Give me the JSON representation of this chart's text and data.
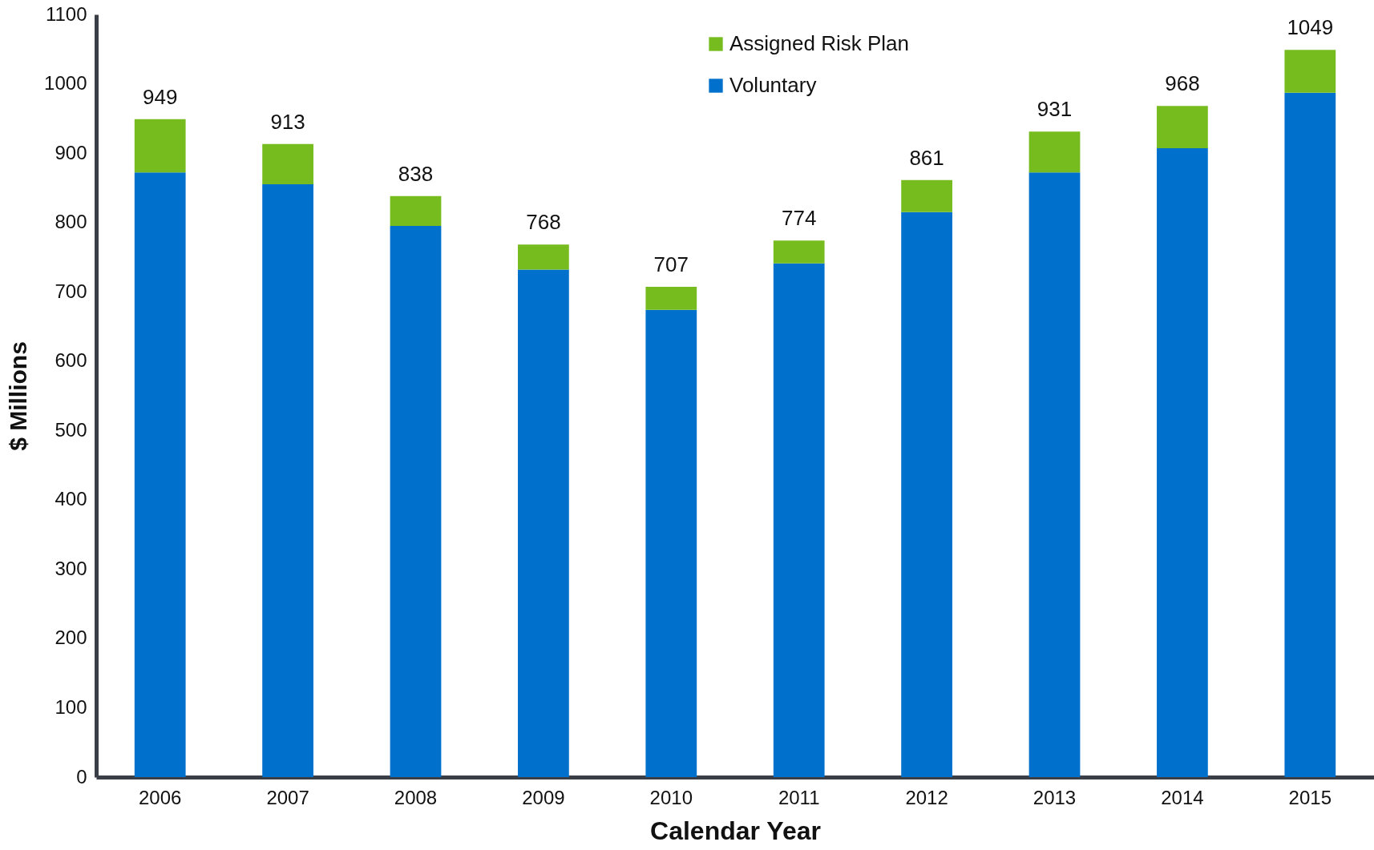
{
  "chart_data": {
    "type": "bar",
    "xlabel": "Calendar Year",
    "ylabel": "$ Millions",
    "categories": [
      "2006",
      "2007",
      "2008",
      "2009",
      "2010",
      "2011",
      "2012",
      "2013",
      "2014",
      "2015"
    ],
    "stacked": true,
    "series": [
      {
        "name": "Voluntary",
        "color": "#0070cd",
        "values": [
          872,
          855,
          795,
          732,
          674,
          741,
          815,
          872,
          907,
          987
        ]
      },
      {
        "name": "Assigned Risk Plan",
        "color": "#77bc1f",
        "values": [
          77,
          58,
          43,
          36,
          33,
          33,
          46,
          59,
          61,
          62
        ]
      }
    ],
    "totals": [
      "949",
      "913",
      "838",
      "768",
      "707",
      "774",
      "861",
      "931",
      "968",
      "1049"
    ],
    "ylim": [
      0,
      1100
    ],
    "yticks": [
      0,
      100,
      200,
      300,
      400,
      500,
      600,
      700,
      800,
      900,
      1000,
      1100
    ],
    "legend": "top"
  }
}
